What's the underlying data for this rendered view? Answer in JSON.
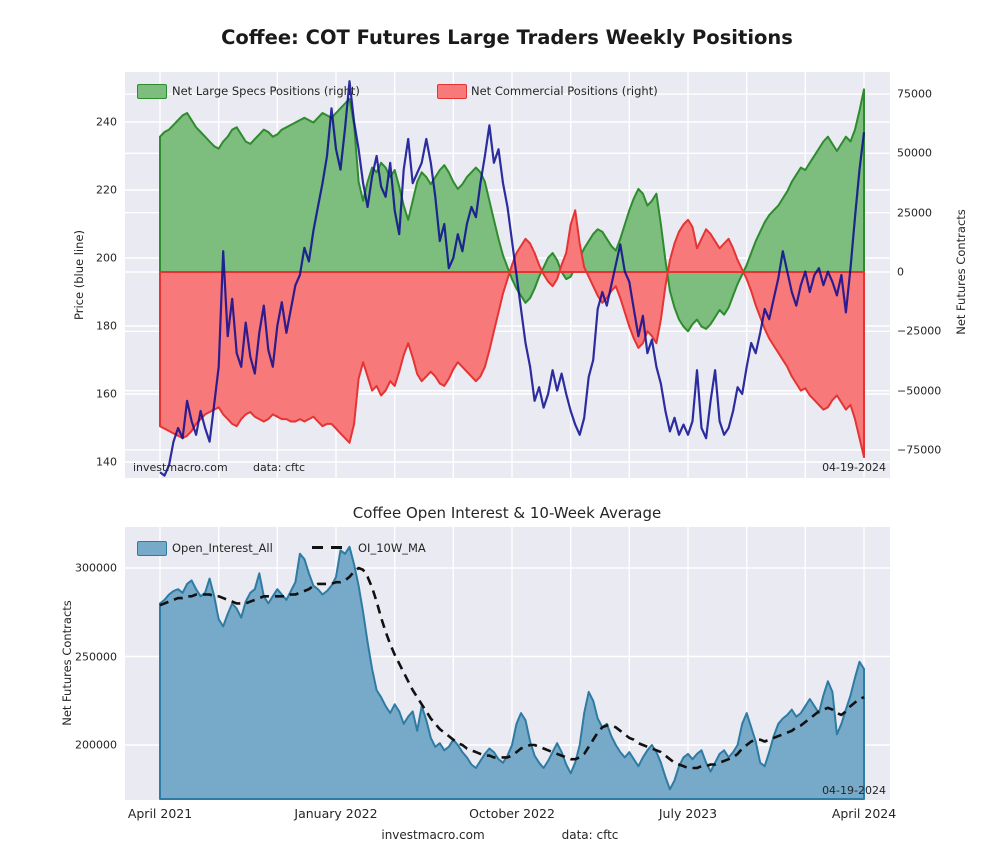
{
  "figure": {
    "title": "Coffee: COT Futures Large Traders Weekly Positions",
    "background": "#ffffff",
    "panel_background": "#eaeaf2",
    "grid_color": "#ffffff"
  },
  "annotations": {
    "site": "investmacro.com",
    "source": "data: cftc",
    "date": "04-19-2024"
  },
  "chart_data": [
    {
      "type": "area",
      "title": "",
      "x_start": "2021-04-16",
      "x_end": "2024-04-19",
      "frequency": "weekly",
      "n_points": 157,
      "ylabel_left": "Price (blue line)",
      "ylabel_right": "Net Futures Contracts",
      "yticks_left": [
        "240",
        "220",
        "200",
        "180",
        "160",
        "140"
      ],
      "ylim_left": [
        135,
        255
      ],
      "yticks_right": [
        "75000",
        "50000",
        "25000",
        "0",
        "−25000",
        "−50000",
        "−75000"
      ],
      "ylim_right": [
        -87000,
        85000
      ],
      "legend_position": "upper left",
      "grid": true,
      "unit_note": "specs and commercials values are in thousands of contracts",
      "series": [
        {
          "name": "Net Large Specs Positions (right)",
          "style": "area-to-zero",
          "axis": "right",
          "color": "#7dbd7d",
          "edge": "#2e8b2e",
          "values": [
            57,
            59,
            60,
            62,
            64,
            66,
            67,
            64,
            61,
            59,
            57,
            55,
            53,
            52,
            55,
            57,
            60,
            61,
            58,
            55,
            54,
            56,
            58,
            60,
            59,
            57,
            58,
            60,
            61,
            62,
            63,
            64,
            65,
            64,
            63,
            65,
            67,
            66,
            65,
            67,
            69,
            71,
            73,
            62,
            38,
            30,
            38,
            44,
            42,
            46,
            44,
            40,
            43,
            36,
            28,
            22,
            30,
            38,
            42,
            40,
            37,
            40,
            43,
            45,
            42,
            38,
            35,
            37,
            40,
            42,
            44,
            42,
            38,
            30,
            22,
            14,
            7,
            2,
            -3,
            -7,
            -10,
            -13,
            -11,
            -7,
            -2,
            2,
            6,
            8,
            5,
            0,
            -3,
            -2,
            2,
            6,
            10,
            13,
            16,
            18,
            17,
            14,
            11,
            9,
            14,
            20,
            26,
            31,
            35,
            33,
            28,
            30,
            33,
            20,
            5,
            -8,
            -15,
            -20,
            -23,
            -25,
            -22,
            -20,
            -23,
            -24,
            -22,
            -19,
            -16,
            -18,
            -15,
            -10,
            -5,
            -1,
            3,
            8,
            13,
            17,
            21,
            24,
            26,
            28,
            31,
            34,
            38,
            41,
            44,
            43,
            46,
            49,
            52,
            55,
            57,
            54,
            51,
            54,
            57,
            55,
            60,
            68,
            77
          ]
        },
        {
          "name": "Net Commercial Positions (right)",
          "style": "area-to-zero",
          "axis": "right",
          "color": "#f87979",
          "edge": "#e43434",
          "values": [
            -65,
            -66,
            -67,
            -68,
            -69,
            -70,
            -69,
            -67,
            -64,
            -62,
            -60,
            -59,
            -58,
            -57,
            -60,
            -62,
            -64,
            -65,
            -62,
            -60,
            -59,
            -61,
            -62,
            -63,
            -62,
            -60,
            -61,
            -62,
            -62,
            -63,
            -63,
            -62,
            -63,
            -62,
            -61,
            -63,
            -65,
            -64,
            -64,
            -66,
            -68,
            -70,
            -72,
            -64,
            -45,
            -38,
            -44,
            -50,
            -48,
            -52,
            -50,
            -46,
            -48,
            -42,
            -35,
            -30,
            -36,
            -43,
            -46,
            -44,
            -42,
            -44,
            -47,
            -48,
            -45,
            -41,
            -38,
            -40,
            -42,
            -44,
            -46,
            -44,
            -40,
            -33,
            -25,
            -17,
            -9,
            -3,
            3,
            8,
            11,
            14,
            12,
            8,
            3,
            -1,
            -4,
            -6,
            -3,
            3,
            8,
            20,
            26,
            12,
            2,
            -2,
            -6,
            -10,
            -13,
            -11,
            -8,
            -6,
            -11,
            -17,
            -23,
            -28,
            -32,
            -30,
            -25,
            -27,
            -30,
            -20,
            -6,
            5,
            12,
            17,
            20,
            22,
            19,
            10,
            14,
            18,
            16,
            13,
            10,
            12,
            14,
            10,
            5,
            1,
            -3,
            -8,
            -14,
            -19,
            -24,
            -28,
            -31,
            -34,
            -37,
            -40,
            -44,
            -47,
            -50,
            -49,
            -52,
            -54,
            -56,
            -58,
            -57,
            -54,
            -52,
            -55,
            -58,
            -56,
            -62,
            -70,
            -78
          ]
        },
        {
          "name": "Price",
          "style": "line",
          "axis": "left",
          "color": "#0a0a91",
          "values": [
            137,
            136,
            139,
            146,
            150,
            147,
            158,
            152,
            148,
            155,
            150,
            146,
            157,
            168,
            202,
            177,
            188,
            172,
            168,
            181,
            171,
            166,
            178,
            186,
            173,
            168,
            180,
            187,
            178,
            185,
            192,
            195,
            203,
            199,
            208,
            215,
            222,
            230,
            244,
            232,
            226,
            238,
            252,
            240,
            232,
            222,
            215,
            224,
            230,
            221,
            218,
            228,
            214,
            207,
            226,
            235,
            222,
            225,
            228,
            235,
            228,
            218,
            205,
            210,
            197,
            200,
            207,
            202,
            210,
            215,
            212,
            222,
            230,
            239,
            228,
            232,
            222,
            215,
            205,
            195,
            185,
            175,
            168,
            158,
            162,
            156,
            160,
            167,
            161,
            166,
            160,
            155,
            151,
            148,
            153,
            165,
            170,
            185,
            190,
            186,
            192,
            198,
            204,
            196,
            193,
            185,
            177,
            183,
            172,
            176,
            168,
            163,
            155,
            149,
            153,
            148,
            151,
            148,
            152,
            167,
            150,
            147,
            158,
            167,
            152,
            148,
            150,
            155,
            162,
            160,
            168,
            175,
            172,
            178,
            185,
            182,
            188,
            194,
            202,
            196,
            190,
            186,
            192,
            196,
            190,
            195,
            197,
            192,
            196,
            193,
            189,
            195,
            184,
            197,
            212,
            226,
            237
          ]
        }
      ]
    },
    {
      "type": "area",
      "title": "Coffee Open Interest & 10-Week Average",
      "x_start": "2021-04-16",
      "x_end": "2024-04-19",
      "frequency": "weekly",
      "n_points": 157,
      "ylabel": "Net Futures Contracts",
      "yticks": [
        "300000",
        "250000",
        "200000"
      ],
      "ylim": [
        168000,
        323000
      ],
      "xticklabels": [
        "April 2021",
        "January 2022",
        "October 2022",
        "July 2023",
        "April 2024"
      ],
      "legend_position": "upper left",
      "grid": true,
      "unit_note": "values are in thousands of contracts",
      "series": [
        {
          "name": "Open_Interest_All",
          "style": "area-to-bottom",
          "color": "#77a9c9",
          "edge": "#2e7ba3",
          "values": [
            280,
            282,
            285,
            287,
            288,
            286,
            291,
            293,
            288,
            284,
            286,
            294,
            284,
            271,
            267,
            274,
            280,
            277,
            272,
            281,
            286,
            288,
            297,
            284,
            280,
            284,
            288,
            285,
            282,
            287,
            292,
            308,
            305,
            297,
            290,
            288,
            285,
            287,
            290,
            295,
            310,
            308,
            312,
            302,
            290,
            275,
            258,
            243,
            231,
            227,
            222,
            218,
            223,
            219,
            212,
            216,
            219,
            208,
            222,
            214,
            204,
            199,
            201,
            197,
            199,
            203,
            200,
            196,
            193,
            189,
            187,
            191,
            195,
            198,
            196,
            192,
            190,
            194,
            200,
            212,
            218,
            214,
            202,
            194,
            190,
            187,
            191,
            196,
            201,
            196,
            189,
            184,
            190,
            200,
            218,
            230,
            225,
            215,
            210,
            212,
            205,
            200,
            196,
            193,
            196,
            192,
            188,
            193,
            197,
            200,
            196,
            190,
            182,
            175,
            180,
            188,
            193,
            195,
            192,
            195,
            197,
            190,
            185,
            190,
            195,
            197,
            193,
            196,
            200,
            212,
            218,
            210,
            202,
            190,
            188,
            196,
            205,
            212,
            215,
            217,
            220,
            216,
            218,
            222,
            226,
            222,
            218,
            228,
            236,
            230,
            206,
            212,
            220,
            228,
            238,
            247,
            243
          ]
        },
        {
          "name": "OI_10W_MA",
          "style": "dashed-line",
          "color": "#111111",
          "values": [
            279,
            280,
            281,
            282,
            283,
            283,
            284,
            284,
            285,
            285,
            285,
            285,
            284,
            284,
            283,
            282,
            281,
            280,
            280,
            280,
            281,
            282,
            283,
            284,
            284,
            284,
            284,
            284,
            284,
            285,
            285,
            286,
            287,
            288,
            290,
            291,
            291,
            291,
            291,
            292,
            292,
            293,
            295,
            298,
            300,
            299,
            295,
            289,
            281,
            272,
            264,
            257,
            251,
            246,
            241,
            236,
            231,
            227,
            223,
            219,
            215,
            212,
            209,
            207,
            205,
            203,
            201,
            200,
            198,
            197,
            196,
            195,
            194,
            194,
            193,
            193,
            193,
            193,
            194,
            196,
            198,
            199,
            200,
            200,
            199,
            198,
            197,
            196,
            195,
            194,
            193,
            192,
            192,
            193,
            195,
            199,
            203,
            207,
            210,
            211,
            211,
            210,
            208,
            206,
            204,
            203,
            201,
            200,
            199,
            198,
            197,
            196,
            194,
            192,
            190,
            189,
            188,
            187,
            187,
            187,
            188,
            188,
            189,
            189,
            190,
            191,
            192,
            193,
            195,
            198,
            200,
            202,
            203,
            203,
            202,
            203,
            204,
            205,
            206,
            207,
            208,
            210,
            211,
            213,
            215,
            217,
            219,
            220,
            221,
            220,
            218,
            217,
            219,
            222,
            224,
            226,
            227
          ]
        }
      ]
    }
  ]
}
